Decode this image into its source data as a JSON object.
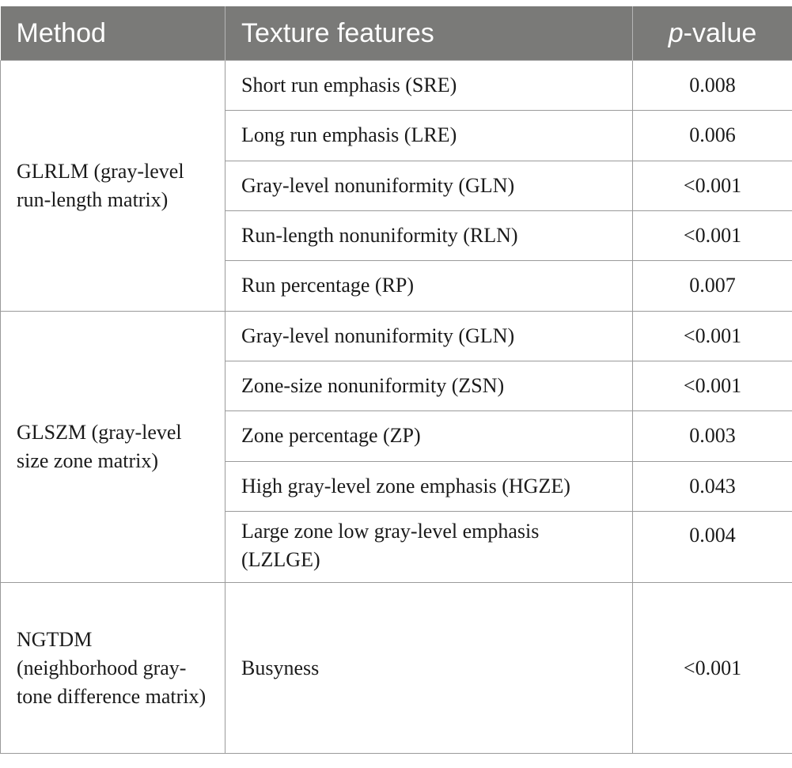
{
  "table": {
    "headers": {
      "method": "Method",
      "features": "Texture features",
      "pvalue_italic": "p",
      "pvalue_rest": "-value"
    },
    "groups": [
      {
        "method": "GLRLM (gray-level run-length matrix)",
        "rows": [
          {
            "feature": "Short run emphasis (SRE)",
            "pvalue": "0.008"
          },
          {
            "feature": "Long run emphasis (LRE)",
            "pvalue": "0.006"
          },
          {
            "feature": "Gray-level nonuniformity (GLN)",
            "pvalue": "<0.001"
          },
          {
            "feature": "Run-length nonuniformity (RLN)",
            "pvalue": "<0.001"
          },
          {
            "feature": "Run percentage (RP)",
            "pvalue": "0.007"
          }
        ]
      },
      {
        "method": "GLSZM (gray-level size zone matrix)",
        "rows": [
          {
            "feature": "Gray-level nonuniformity (GLN)",
            "pvalue": "<0.001"
          },
          {
            "feature": "Zone-size nonuniformity (ZSN)",
            "pvalue": "<0.001"
          },
          {
            "feature": "Zone percentage (ZP)",
            "pvalue": "0.003"
          },
          {
            "feature": "High gray-level zone emphasis (HGZE)",
            "pvalue": "0.043"
          },
          {
            "feature": "Large zone low gray-level emphasis (LZLGE)",
            "pvalue": "0.004"
          }
        ]
      },
      {
        "method": "NGTDM (neighborhood gray-tone difference matrix)",
        "rows": [
          {
            "feature": "Busyness",
            "pvalue": "<0.001"
          }
        ]
      }
    ]
  }
}
